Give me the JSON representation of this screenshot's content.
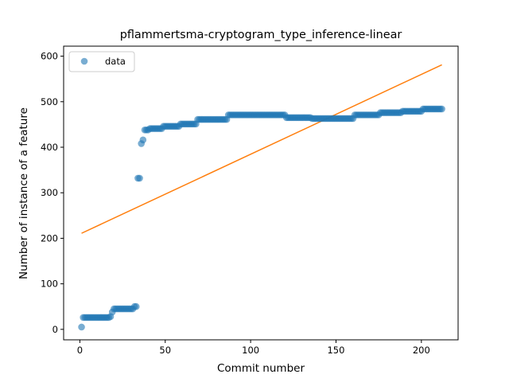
{
  "chart_data": {
    "type": "scatter",
    "title": "pflammertsma-cryptogram_type_inference-linear",
    "xlabel": "Commit number",
    "ylabel": "Number of instance of a feature",
    "xlim": [
      -9.5,
      221.5
    ],
    "ylim": [
      -23,
      622
    ],
    "xticks": [
      0,
      50,
      100,
      150,
      200
    ],
    "yticks": [
      0,
      100,
      200,
      300,
      400,
      500,
      600
    ],
    "grid": false,
    "legend_position": "top-left",
    "series": [
      {
        "name": "data",
        "kind": "scatter",
        "color": "#1f77b4",
        "segments": [
          {
            "x_from": 1,
            "x_to": 1,
            "y": 5
          },
          {
            "x_from": 2,
            "x_to": 17,
            "y": 26
          },
          {
            "x_from": 18,
            "x_to": 18,
            "y": 28
          },
          {
            "x_from": 19,
            "x_to": 19,
            "y": 38
          },
          {
            "x_from": 20,
            "x_to": 31,
            "y": 45
          },
          {
            "x_from": 32,
            "x_to": 33,
            "y": 50
          },
          {
            "x_from": 34,
            "x_to": 35,
            "y": 332
          },
          {
            "x_from": 36,
            "x_to": 36,
            "y": 408
          },
          {
            "x_from": 37,
            "x_to": 37,
            "y": 416
          },
          {
            "x_from": 38,
            "x_to": 40,
            "y": 438
          },
          {
            "x_from": 41,
            "x_to": 48,
            "y": 441
          },
          {
            "x_from": 49,
            "x_to": 58,
            "y": 446
          },
          {
            "x_from": 59,
            "x_to": 68,
            "y": 451
          },
          {
            "x_from": 69,
            "x_to": 86,
            "y": 461
          },
          {
            "x_from": 87,
            "x_to": 120,
            "y": 471
          },
          {
            "x_from": 121,
            "x_to": 135,
            "y": 465
          },
          {
            "x_from": 136,
            "x_to": 160,
            "y": 463
          },
          {
            "x_from": 161,
            "x_to": 175,
            "y": 471
          },
          {
            "x_from": 176,
            "x_to": 188,
            "y": 476
          },
          {
            "x_from": 189,
            "x_to": 200,
            "y": 479
          },
          {
            "x_from": 201,
            "x_to": 212,
            "y": 484
          }
        ]
      },
      {
        "name": "",
        "kind": "line",
        "color": "#ff7f0e",
        "x": [
          1,
          212
        ],
        "y": [
          211,
          581
        ]
      }
    ]
  }
}
